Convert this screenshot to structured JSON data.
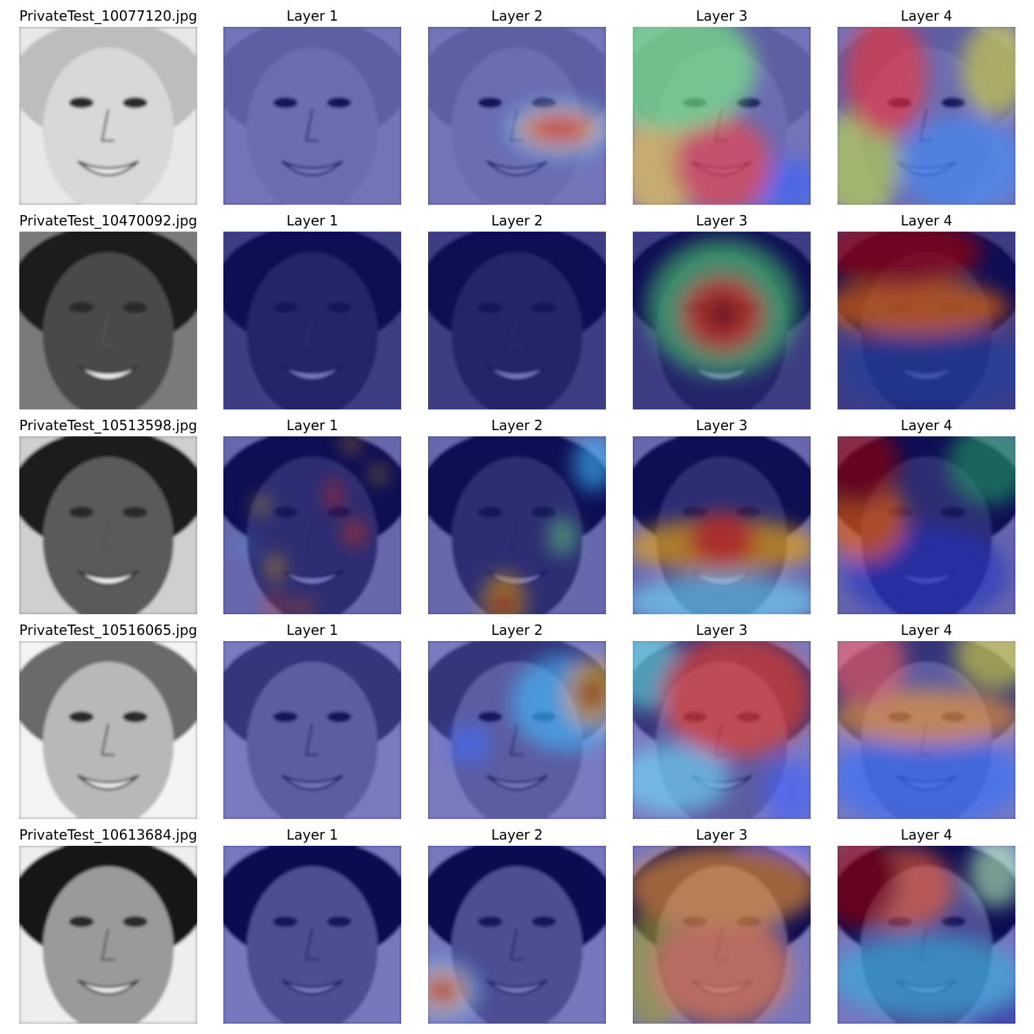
{
  "rows": [
    {
      "filename": "PrivateTest_10077120.jpg",
      "layer_titles": [
        "Layer 1",
        "Layer 2",
        "Layer 3",
        "Layer 4"
      ],
      "face_tone": "#d8d8d8",
      "hair_tone": "#bdbdbd",
      "bg_tone": "#e8e8e8"
    },
    {
      "filename": "PrivateTest_10470092.jpg",
      "layer_titles": [
        "Layer 1",
        "Layer 2",
        "Layer 3",
        "Layer 4"
      ],
      "face_tone": "#4a4a4a",
      "hair_tone": "#1e1e1e",
      "bg_tone": "#7a7a7a"
    },
    {
      "filename": "PrivateTest_10513598.jpg",
      "layer_titles": [
        "Layer 1",
        "Layer 2",
        "Layer 3",
        "Layer 4"
      ],
      "face_tone": "#5a5a5a",
      "hair_tone": "#1a1a1a",
      "bg_tone": "#cfcfcf"
    },
    {
      "filename": "PrivateTest_10516065.jpg",
      "layer_titles": [
        "Layer 1",
        "Layer 2",
        "Layer 3",
        "Layer 4"
      ],
      "face_tone": "#b8b8b8",
      "hair_tone": "#6a6a6a",
      "bg_tone": "#f4f4f4"
    },
    {
      "filename": "PrivateTest_10613684.jpg",
      "layer_titles": [
        "Layer 1",
        "Layer 2",
        "Layer 3",
        "Layer 4"
      ],
      "face_tone": "#9a9a9a",
      "hair_tone": "#141414",
      "bg_tone": "#eeeeee"
    }
  ],
  "heatmap_style": {
    "colormap": "jet",
    "base_overlay": "#00008b"
  }
}
